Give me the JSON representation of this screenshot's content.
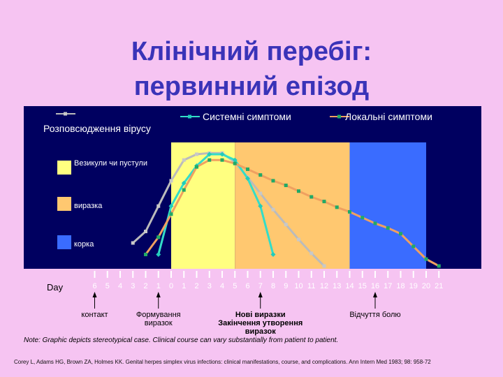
{
  "title": {
    "line1": "Клінічний перебіг:",
    "line2": "первинний епізод"
  },
  "chart_data": {
    "type": "line",
    "x": [
      -6,
      -5,
      -4,
      -3,
      -2,
      -1,
      0,
      1,
      2,
      3,
      4,
      5,
      6,
      7,
      8,
      9,
      10,
      11,
      12,
      13,
      14,
      15,
      16,
      17,
      18,
      19,
      20,
      21
    ],
    "x_tick_labels": [
      "6",
      "5",
      "4",
      "3",
      "2",
      "1",
      "0",
      "1",
      "2",
      "3",
      "4",
      "5",
      "6",
      "7",
      "8",
      "9",
      "10",
      "11",
      "12",
      "13",
      "14",
      "15",
      "16",
      "17",
      "18",
      "19",
      "20",
      "21"
    ],
    "xlabel": "Day",
    "series": [
      {
        "name": "Розповсюдження вірусу",
        "color": "#bbbbbb",
        "points": [
          [
            -3,
            20
          ],
          [
            -2,
            30
          ],
          [
            -1,
            52
          ],
          [
            0,
            74
          ],
          [
            1,
            92
          ],
          [
            2,
            97
          ],
          [
            3,
            98
          ],
          [
            4,
            98
          ],
          [
            5,
            90
          ],
          [
            6,
            77
          ],
          [
            7,
            63
          ],
          [
            8,
            49
          ],
          [
            9,
            36
          ],
          [
            10,
            23
          ],
          [
            11,
            11
          ],
          [
            12,
            0
          ]
        ]
      },
      {
        "name": "Системні симптоми",
        "color": "#33ddc8",
        "points": [
          [
            -1,
            10
          ],
          [
            0,
            52
          ],
          [
            1,
            72
          ],
          [
            2,
            87
          ],
          [
            3,
            97
          ],
          [
            4,
            97
          ],
          [
            5,
            92
          ],
          [
            6,
            76
          ],
          [
            7,
            52
          ],
          [
            8,
            10
          ]
        ]
      },
      {
        "name": "Локальні симптоми",
        "color": "#f0a060",
        "points": [
          [
            -2,
            10
          ],
          [
            -1,
            25
          ],
          [
            0,
            45
          ],
          [
            1,
            66
          ],
          [
            2,
            86
          ],
          [
            3,
            92
          ],
          [
            4,
            92
          ],
          [
            5,
            89
          ],
          [
            6,
            84
          ],
          [
            7,
            79
          ],
          [
            8,
            74
          ],
          [
            9,
            70
          ],
          [
            10,
            65
          ],
          [
            11,
            60
          ],
          [
            12,
            56
          ],
          [
            13,
            51
          ],
          [
            14,
            47
          ],
          [
            15,
            42
          ],
          [
            16,
            37
          ],
          [
            17,
            33
          ],
          [
            18,
            28
          ],
          [
            19,
            17
          ],
          [
            20,
            6
          ],
          [
            21,
            0
          ]
        ]
      }
    ],
    "phases": [
      {
        "label": "Везикули чи пустули",
        "color": "#ffff80",
        "from": 0,
        "to": 5
      },
      {
        "label": "виразка",
        "color": "#ffc870",
        "from": 5,
        "to": 14
      },
      {
        "label": "корка",
        "color": "#3a6cff",
        "from": 14,
        "to": 20
      }
    ],
    "annotations": [
      {
        "text": "контакт",
        "x": -6,
        "bold": false
      },
      {
        "text": "Формування\nвиразок",
        "x": -1,
        "bold": false
      },
      {
        "text": "Нові виразки\nЗакінчення утворення\nвиразок",
        "x": 7,
        "bold": true
      },
      {
        "text": "Відчуття болю",
        "x": 16,
        "bold": false
      }
    ],
    "background": "#000060"
  },
  "footer": {
    "note": "Note: Graphic depicts stereotypical case. Clinical course can vary substantially from patient to patient.",
    "citation": "Corey L, Adams HG, Brown ZA, Holmes KK. Genital herpes simplex virus infections: clinical manifestations, course, and complications. Ann Intern Med 1983; 98: 958-72"
  }
}
